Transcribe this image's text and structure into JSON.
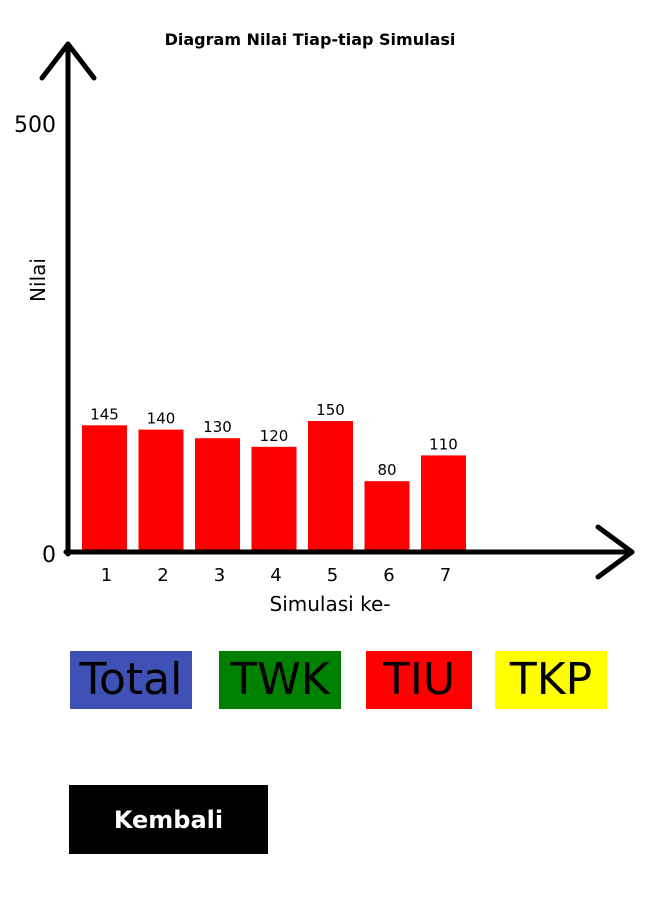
{
  "colors": {
    "bar": "#ff0000",
    "total": "#3f51b5",
    "twk": "#008000",
    "tiu": "#ff0000",
    "tkp": "#ffff00",
    "back": "#000000"
  },
  "chart_data": {
    "type": "bar",
    "title": "Diagram Nilai Tiap-tiap Simulasi",
    "xlabel": "Simulasi ke-",
    "ylabel": "Nilai",
    "ylim": [
      0,
      500
    ],
    "yticks": [
      "0",
      "500"
    ],
    "categories": [
      "1",
      "2",
      "3",
      "4",
      "5",
      "6",
      "7"
    ],
    "values": [
      145,
      140,
      130,
      120,
      150,
      80,
      110
    ],
    "data_labels": [
      "145",
      "140",
      "130",
      "120",
      "150",
      "80",
      "110"
    ]
  },
  "tabs": {
    "total": "Total",
    "twk": "TWK",
    "tiu": "TIU",
    "tkp": "TKP"
  },
  "back_label": "Kembali"
}
